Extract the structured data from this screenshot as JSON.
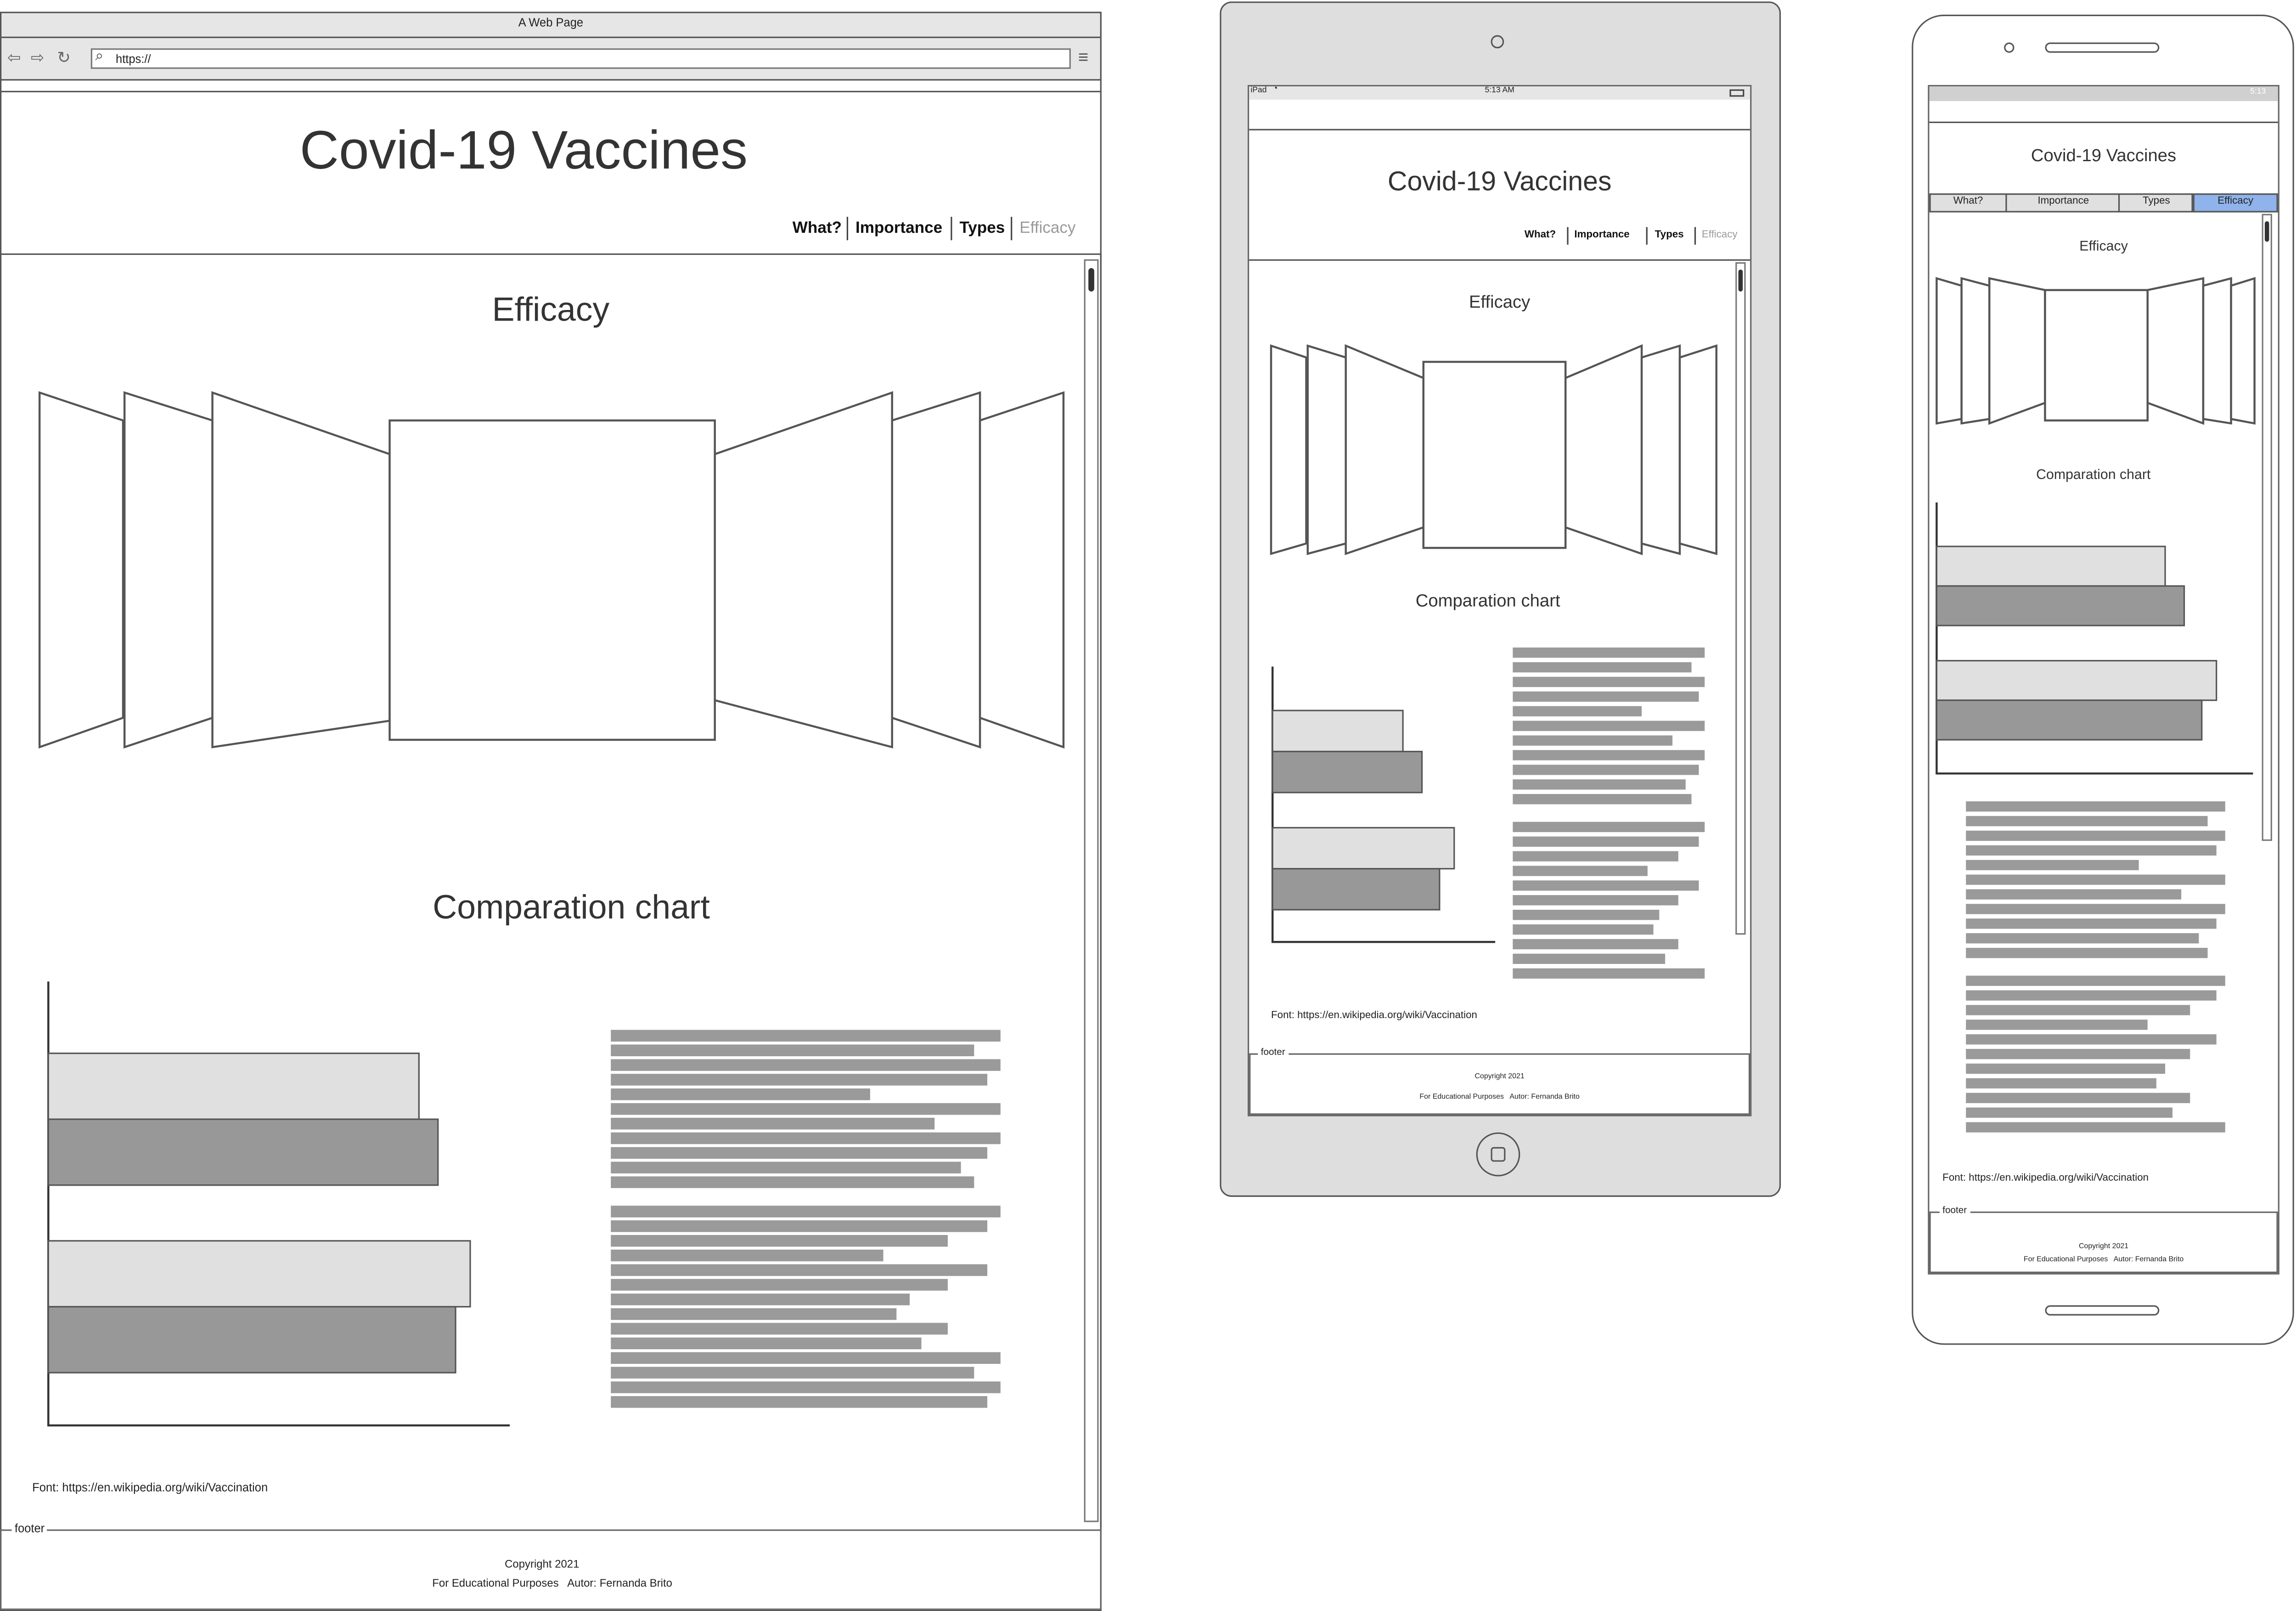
{
  "browser": {
    "window_title": "A Web Page",
    "url": "https://"
  },
  "site": {
    "title": "Covid-19 Vaccines",
    "nav": [
      "What?",
      "Importance",
      "Types",
      "Efficacy"
    ],
    "active_nav": "Efficacy",
    "efficacy_heading": "Efficacy",
    "chart_heading": "Comparation chart",
    "source": "Font: https://en.wikipedia.org/wiki/Vaccination",
    "footer_legend": "footer",
    "copyright": "Copyright 2021",
    "credits": "For Educational Purposes   Autor: Fernanda Brito"
  },
  "tablet": {
    "device": "iPad",
    "time": "5:13 AM"
  },
  "phone": {
    "time": "5:13"
  },
  "chart_data": {
    "type": "bar",
    "orientation": "horizontal",
    "series": [
      {
        "values": [
          79,
          88
        ]
      },
      {
        "values": [
          83,
          87
        ]
      }
    ],
    "note": "wireframe placeholder bars without labels"
  },
  "colors": {
    "active_tab": "#8fb3ea",
    "light_bar": "#e0e0e0",
    "dark_bar": "#989898",
    "device_frame": "#e0e0e0"
  }
}
